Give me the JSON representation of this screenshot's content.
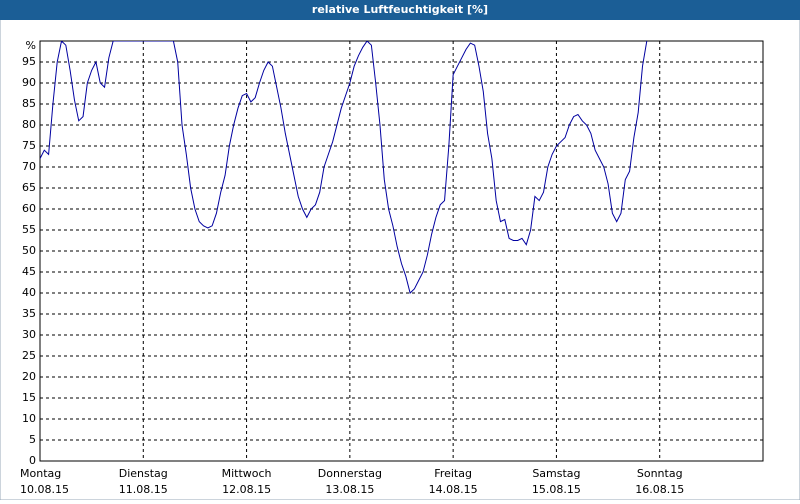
{
  "chart_data": {
    "type": "line",
    "title": "relative Luftfeuchtigkeit [%]",
    "xlim": [
      0,
      168
    ],
    "xticks": [
      {
        "value": 0,
        "label": "Montag",
        "date": "10.08.15"
      },
      {
        "value": 24,
        "label": "Dienstag",
        "date": "11.08.15"
      },
      {
        "value": 48,
        "label": "Mittwoch",
        "date": "12.08.15"
      },
      {
        "value": 72,
        "label": "Donnerstag",
        "date": "13.08.15"
      },
      {
        "value": 96,
        "label": "Freitag",
        "date": "14.08.15"
      },
      {
        "value": 120,
        "label": "Samstag",
        "date": "15.08.15"
      },
      {
        "value": 144,
        "label": "Sonntag",
        "date": "16.08.15"
      }
    ],
    "ylim": [
      0,
      100
    ],
    "yticks": [
      0,
      5,
      10,
      15,
      20,
      25,
      30,
      35,
      40,
      45,
      50,
      55,
      60,
      65,
      70,
      75,
      80,
      85,
      90,
      95,
      {
        "value": 100,
        "label": "%"
      }
    ],
    "grid": true,
    "x": [
      0,
      1,
      2,
      3,
      4,
      5,
      6,
      7,
      8,
      9,
      10,
      11,
      12,
      13,
      14,
      15,
      16,
      17,
      18,
      19,
      20,
      21,
      22,
      23,
      24,
      25,
      26,
      27,
      28,
      29,
      30,
      31,
      32,
      33,
      34,
      35,
      36,
      37,
      38,
      39,
      40,
      41,
      42,
      43,
      44,
      45,
      46,
      47,
      48,
      49,
      50,
      51,
      52,
      53,
      54,
      55,
      56,
      57,
      58,
      59,
      60,
      61,
      62,
      63,
      64,
      65,
      66,
      67,
      68,
      69,
      70,
      71,
      72,
      73,
      74,
      75,
      76,
      77,
      78,
      79,
      80,
      81,
      82,
      83,
      84,
      85,
      86,
      87,
      88,
      89,
      90,
      91,
      92,
      93,
      94,
      95,
      96,
      97,
      98,
      99,
      100,
      101,
      102,
      103,
      104,
      105,
      106,
      107,
      108,
      109,
      110,
      111,
      112,
      113,
      114,
      115,
      116,
      117,
      118,
      119,
      120,
      121,
      122,
      123,
      124,
      125,
      126,
      127,
      128,
      129,
      130,
      131,
      132,
      133,
      134,
      135,
      136,
      137,
      138,
      139,
      140,
      141
    ],
    "series": [
      {
        "name": "relative Luftfeuchtigkeit",
        "color": "#0000a0",
        "values": [
          72,
          74,
          73,
          85,
          95,
          100,
          99,
          93,
          86,
          81,
          82,
          90,
          93,
          95,
          90,
          89,
          96,
          100,
          100,
          100,
          100,
          100,
          100,
          100,
          100,
          100,
          100,
          100,
          100,
          100,
          100,
          100,
          95,
          80,
          73,
          65,
          60,
          57,
          56,
          55.5,
          56,
          59,
          64,
          68,
          75,
          80,
          84,
          87,
          87.5,
          85.5,
          86.5,
          90,
          93,
          95,
          94,
          89,
          84,
          78,
          73,
          68,
          63,
          60,
          58,
          60,
          61,
          64,
          70,
          73,
          76,
          80,
          84,
          87,
          90,
          94,
          96.5,
          98.5,
          100,
          99,
          90,
          80,
          67,
          60,
          56,
          51,
          47,
          44,
          40,
          41,
          43,
          45,
          49,
          54,
          58,
          61,
          62,
          75,
          92,
          94,
          96,
          98,
          99.5,
          99,
          94,
          88,
          78,
          72,
          62,
          57,
          57.5,
          53,
          52.5,
          52.5,
          53,
          51.5,
          55,
          63,
          62,
          64,
          70,
          73,
          75,
          76,
          77,
          80,
          82,
          82.5,
          81,
          80,
          78,
          74,
          72,
          70,
          66,
          59,
          57,
          59,
          67,
          69,
          77,
          83,
          94,
          100
        ]
      }
    ]
  }
}
